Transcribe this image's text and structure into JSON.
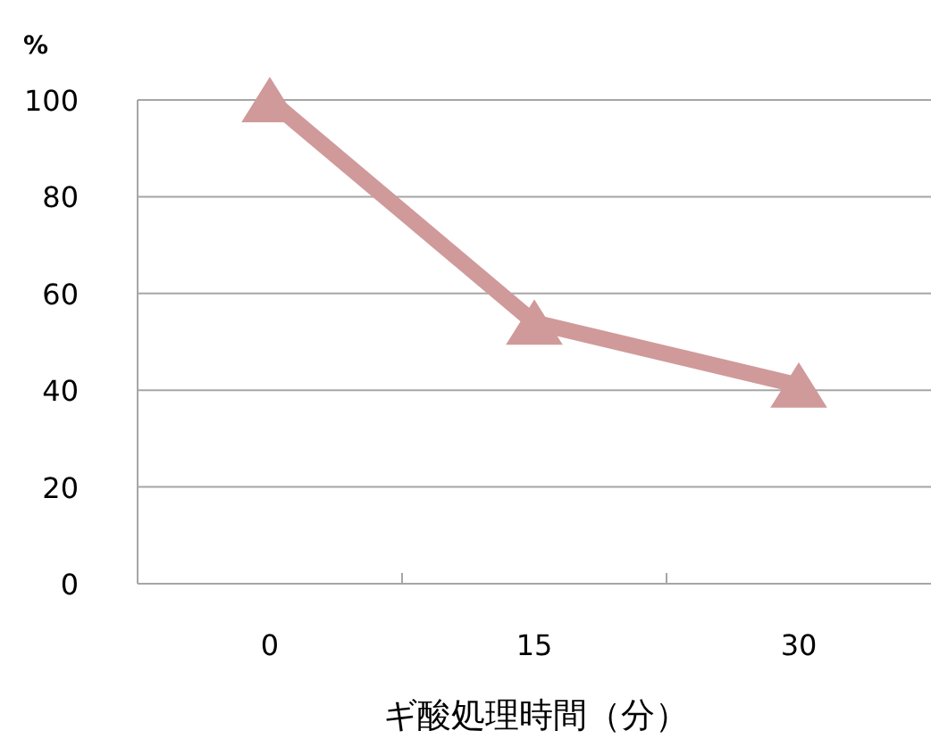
{
  "chart_data": {
    "type": "line",
    "ylabel": "%",
    "xlabel": "ギ酸処理時間（分）",
    "categories": [
      "0",
      "15",
      "30"
    ],
    "series": [
      {
        "color": "#d09a9a",
        "values": [
          100,
          54,
          41
        ]
      }
    ],
    "ylim": [
      0,
      100
    ],
    "yticks": [
      0,
      20,
      40,
      60,
      80,
      100
    ],
    "grid": "y",
    "marker": "triangle",
    "line_style": "solid"
  }
}
